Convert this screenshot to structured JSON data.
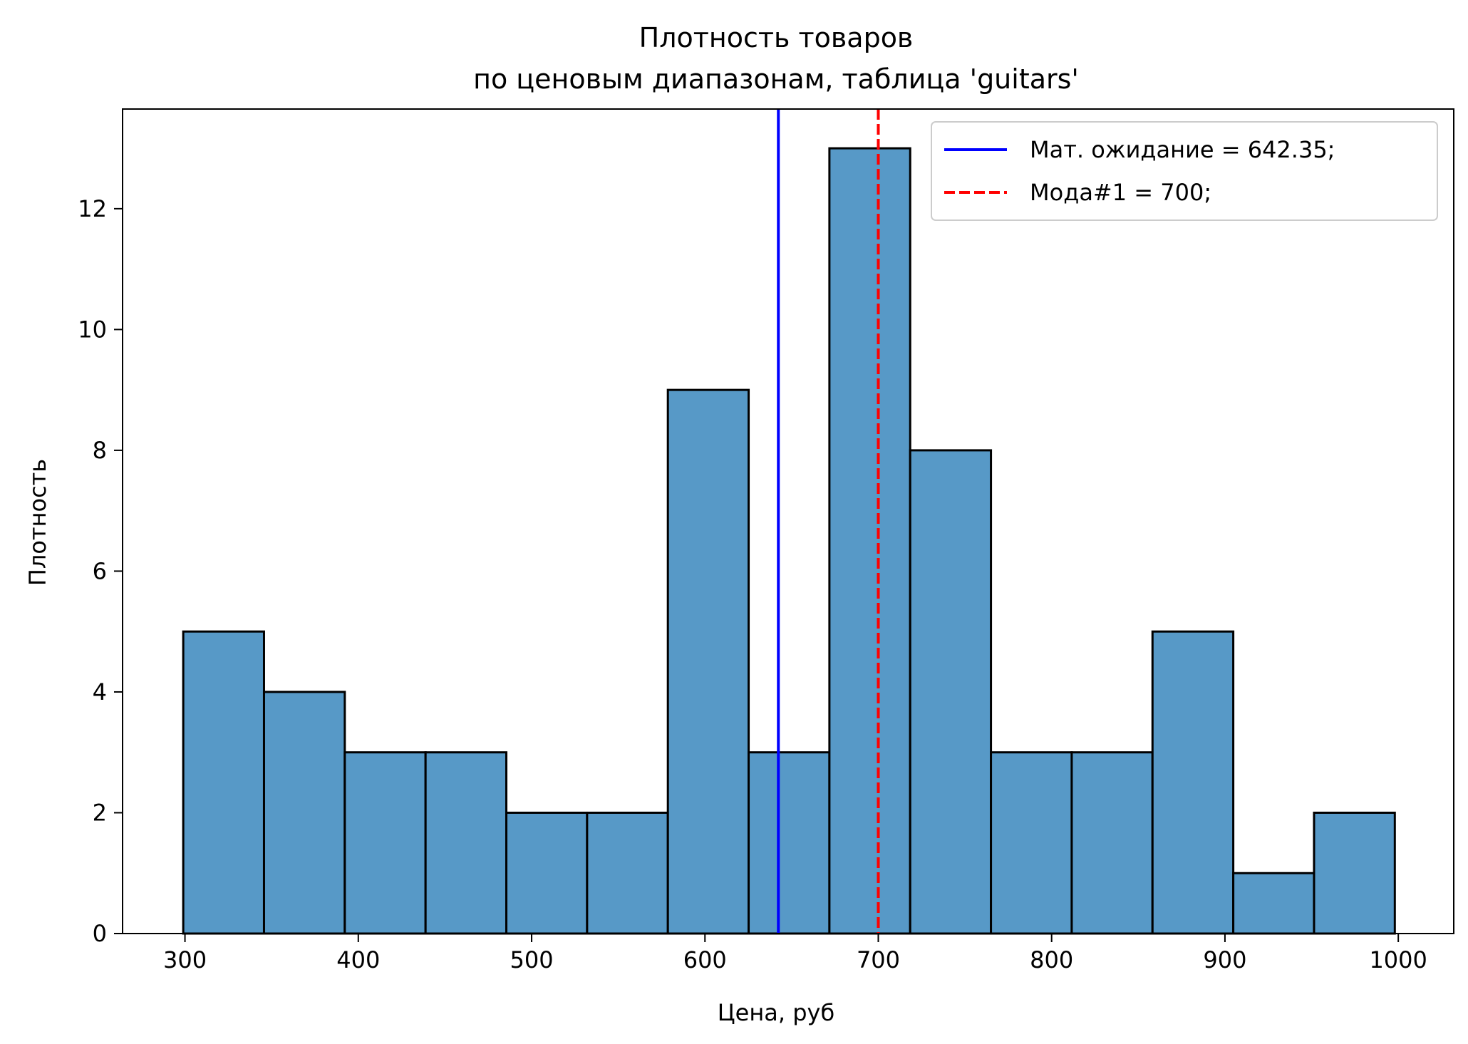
{
  "chart_data": {
    "type": "bar",
    "title_lines": [
      "Плотность товаров",
      "по ценовым диапазонам, таблица 'guitars'"
    ],
    "xlabel": "Цена, руб",
    "ylabel": "Плотность",
    "bins": [
      {
        "x0": 299,
        "x1": 345.6,
        "value": 5
      },
      {
        "x0": 345.6,
        "x1": 392.2,
        "value": 4
      },
      {
        "x0": 392.2,
        "x1": 438.8,
        "value": 3
      },
      {
        "x0": 438.8,
        "x1": 485.4,
        "value": 3
      },
      {
        "x0": 485.4,
        "x1": 532.0,
        "value": 2
      },
      {
        "x0": 532.0,
        "x1": 578.6,
        "value": 2
      },
      {
        "x0": 578.6,
        "x1": 625.2,
        "value": 9
      },
      {
        "x0": 625.2,
        "x1": 671.8,
        "value": 3
      },
      {
        "x0": 671.8,
        "x1": 718.4,
        "value": 13
      },
      {
        "x0": 718.4,
        "x1": 765.0,
        "value": 8
      },
      {
        "x0": 765.0,
        "x1": 811.6,
        "value": 3
      },
      {
        "x0": 811.6,
        "x1": 858.2,
        "value": 3
      },
      {
        "x0": 858.2,
        "x1": 904.8,
        "value": 5
      },
      {
        "x0": 904.8,
        "x1": 951.4,
        "value": 1
      },
      {
        "x0": 951.4,
        "x1": 998.0,
        "value": 2
      }
    ],
    "xlim": [
      264,
      1032
    ],
    "ylim": [
      0,
      13.65
    ],
    "xticks": [
      {
        "value": 300,
        "label": "300"
      },
      {
        "value": 400,
        "label": "400"
      },
      {
        "value": 500,
        "label": "500"
      },
      {
        "value": 600,
        "label": "600"
      },
      {
        "value": 700,
        "label": "700"
      },
      {
        "value": 800,
        "label": "800"
      },
      {
        "value": 900,
        "label": "900"
      },
      {
        "value": 1000,
        "label": "1000"
      }
    ],
    "yticks": [
      {
        "value": 0,
        "label": "0"
      },
      {
        "value": 2,
        "label": "2"
      },
      {
        "value": 4,
        "label": "4"
      },
      {
        "value": 6,
        "label": "6"
      },
      {
        "value": 8,
        "label": "8"
      },
      {
        "value": 10,
        "label": "10"
      },
      {
        "value": 12,
        "label": "12"
      }
    ],
    "vlines": [
      {
        "x": 642.35,
        "color": "#0000ff",
        "style": "solid",
        "label": "Мат. ожидание = 642.35;"
      },
      {
        "x": 700,
        "color": "#ff0000",
        "style": "dashed",
        "label": "Мода#1 = 700;"
      }
    ],
    "grid": false,
    "legend_position": "top-right",
    "colors": {
      "bar_fill": "#5799c7",
      "bar_edge": "#000000"
    }
  }
}
